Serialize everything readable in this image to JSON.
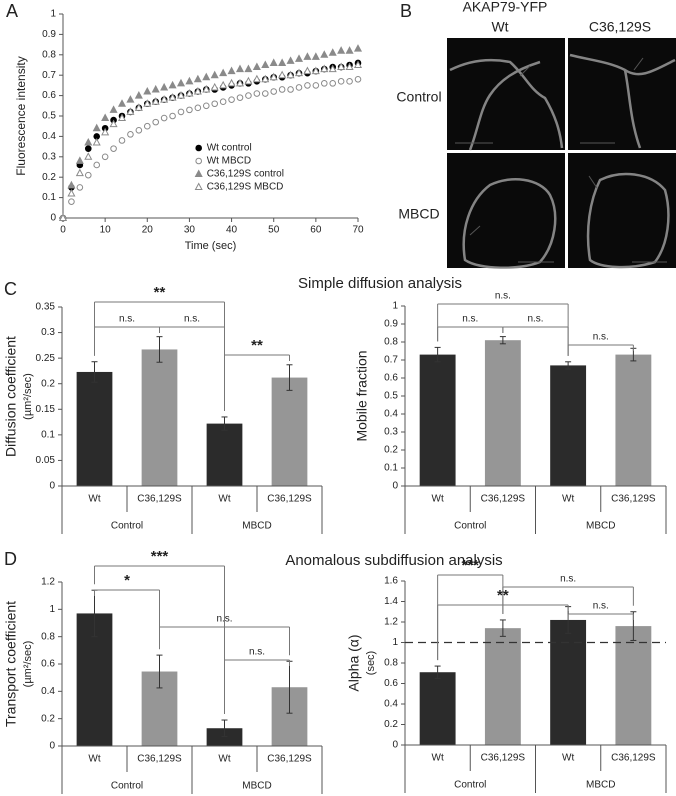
{
  "panel_labels": [
    "A",
    "B",
    "C",
    "D"
  ],
  "section_titles": [
    "Simple diffusion analysis",
    "Anomalous subdiffusion analysis"
  ],
  "micrograph": {
    "title": "AKAP79-YFP",
    "columns": [
      "Wt",
      "C36,129S"
    ],
    "rows": [
      "Control",
      "MBCD"
    ]
  },
  "chart_data": [
    {
      "type": "scatter",
      "x_label": "Time (sec)",
      "y_label": "Fluorescence intensity",
      "x": [
        0,
        2,
        4,
        6,
        8,
        10,
        12,
        14,
        16,
        18,
        20,
        22,
        24,
        26,
        28,
        30,
        32,
        34,
        36,
        38,
        40,
        42,
        44,
        46,
        48,
        50,
        52,
        54,
        56,
        58,
        60,
        62,
        64,
        66,
        68,
        70
      ],
      "xlim": [
        0,
        70
      ],
      "xticks": [
        0,
        10,
        20,
        30,
        40,
        50,
        60,
        70
      ],
      "ylim": [
        0,
        1
      ],
      "yticks": [
        0,
        0.1,
        0.2,
        0.3,
        0.4,
        0.5,
        0.6,
        0.7,
        0.8,
        0.9,
        1
      ],
      "legend": "lower right",
      "series": [
        {
          "name": "Wt control",
          "color": "#000000",
          "marker": "circle",
          "filled": true,
          "values": [
            0,
            0.15,
            0.26,
            0.34,
            0.4,
            0.44,
            0.48,
            0.5,
            0.52,
            0.54,
            0.56,
            0.57,
            0.58,
            0.59,
            0.6,
            0.61,
            0.62,
            0.63,
            0.63,
            0.64,
            0.65,
            0.66,
            0.66,
            0.67,
            0.68,
            0.69,
            0.69,
            0.7,
            0.71,
            0.71,
            0.72,
            0.73,
            0.74,
            0.74,
            0.75,
            0.76
          ]
        },
        {
          "name": "Wt MBCD",
          "color": "#8a8a8a",
          "marker": "circle",
          "filled": false,
          "values": [
            0,
            0.08,
            0.15,
            0.21,
            0.26,
            0.3,
            0.34,
            0.38,
            0.41,
            0.43,
            0.45,
            0.47,
            0.49,
            0.5,
            0.52,
            0.53,
            0.54,
            0.55,
            0.56,
            0.57,
            0.58,
            0.59,
            0.6,
            0.61,
            0.61,
            0.62,
            0.63,
            0.63,
            0.64,
            0.65,
            0.65,
            0.66,
            0.66,
            0.67,
            0.67,
            0.68
          ]
        },
        {
          "name": "C36,129S control",
          "color": "#8a8a8a",
          "marker": "triangle",
          "filled": true,
          "values": [
            0,
            0.16,
            0.28,
            0.37,
            0.44,
            0.49,
            0.53,
            0.56,
            0.58,
            0.6,
            0.62,
            0.63,
            0.64,
            0.65,
            0.66,
            0.67,
            0.68,
            0.69,
            0.7,
            0.71,
            0.72,
            0.73,
            0.73,
            0.74,
            0.75,
            0.76,
            0.76,
            0.77,
            0.78,
            0.79,
            0.79,
            0.8,
            0.81,
            0.82,
            0.82,
            0.83
          ]
        },
        {
          "name": "C36,129S MBCD",
          "color": "#8a8a8a",
          "marker": "triangle",
          "filled": false,
          "values": [
            0,
            0.12,
            0.22,
            0.3,
            0.37,
            0.42,
            0.46,
            0.49,
            0.52,
            0.54,
            0.56,
            0.57,
            0.58,
            0.59,
            0.6,
            0.61,
            0.62,
            0.63,
            0.64,
            0.65,
            0.66,
            0.66,
            0.67,
            0.68,
            0.68,
            0.69,
            0.7,
            0.7,
            0.71,
            0.72,
            0.72,
            0.73,
            0.73,
            0.74,
            0.74,
            0.75
          ]
        }
      ]
    },
    {
      "type": "bar",
      "y_label": "Diffusion coefficient",
      "y_unit": "(µm²/sec)",
      "categories": [
        "Wt",
        "C36,129S",
        "Wt",
        "C36,129S"
      ],
      "groups": [
        "Control",
        "MBCD"
      ],
      "values": [
        0.223,
        0.267,
        0.122,
        0.212
      ],
      "errors": [
        0.02,
        0.025,
        0.013,
        0.025
      ],
      "colors": [
        "#2b2b2b",
        "#969696",
        "#2b2b2b",
        "#969696"
      ],
      "ylim": [
        0,
        0.35
      ],
      "yticks": [
        0,
        0.05,
        0.1,
        0.15,
        0.2,
        0.25,
        0.3,
        0.35
      ],
      "comparisons": [
        {
          "label": "**",
          "pair": [
            0,
            2
          ]
        },
        {
          "label": "n.s.",
          "pair": [
            0,
            1
          ]
        },
        {
          "label": "n.s.",
          "pair": [
            1,
            2
          ]
        },
        {
          "label": "**",
          "pair": [
            2,
            3
          ]
        }
      ]
    },
    {
      "type": "bar",
      "y_label": "Mobile fraction",
      "categories": [
        "Wt",
        "C36,129S",
        "Wt",
        "C36,129S"
      ],
      "groups": [
        "Control",
        "MBCD"
      ],
      "values": [
        0.73,
        0.81,
        0.67,
        0.73
      ],
      "errors": [
        0.04,
        0.02,
        0.02,
        0.035
      ],
      "colors": [
        "#2b2b2b",
        "#969696",
        "#2b2b2b",
        "#969696"
      ],
      "ylim": [
        0,
        1
      ],
      "yticks": [
        0,
        0.1,
        0.2,
        0.3,
        0.4,
        0.5,
        0.6,
        0.7,
        0.8,
        0.9,
        1
      ],
      "comparisons": [
        {
          "label": "n.s.",
          "pair": [
            0,
            2
          ]
        },
        {
          "label": "n.s.",
          "pair": [
            0,
            1
          ]
        },
        {
          "label": "n.s.",
          "pair": [
            1,
            2
          ]
        },
        {
          "label": "n.s.",
          "pair": [
            2,
            3
          ]
        }
      ]
    },
    {
      "type": "bar",
      "y_label": "Transport  coefficient",
      "y_unit": "(µm²/sec)",
      "categories": [
        "Wt",
        "C36,129S",
        "Wt",
        "C36,129S"
      ],
      "groups": [
        "Control",
        "MBCD"
      ],
      "values": [
        0.97,
        0.545,
        0.13,
        0.43
      ],
      "errors": [
        0.17,
        0.12,
        0.06,
        0.19
      ],
      "colors": [
        "#2b2b2b",
        "#969696",
        "#2b2b2b",
        "#969696"
      ],
      "ylim": [
        0,
        1.2
      ],
      "yticks": [
        0,
        0.2,
        0.4,
        0.6,
        0.8,
        1,
        1.2
      ],
      "comparisons": [
        {
          "label": "***",
          "pair": [
            0,
            2
          ]
        },
        {
          "label": "*",
          "pair": [
            0,
            1
          ]
        },
        {
          "label": "n.s.",
          "pair": [
            1,
            3
          ]
        },
        {
          "label": "n.s.",
          "pair": [
            2,
            3
          ]
        }
      ]
    },
    {
      "type": "bar",
      "y_label": "Alpha (α)",
      "y_unit": "(sec)",
      "categories": [
        "Wt",
        "C36,129S",
        "Wt",
        "C36,129S"
      ],
      "groups": [
        "Control",
        "MBCD"
      ],
      "values": [
        0.71,
        1.14,
        1.22,
        1.16
      ],
      "errors": [
        0.06,
        0.08,
        0.13,
        0.14
      ],
      "colors": [
        "#2b2b2b",
        "#969696",
        "#2b2b2b",
        "#969696"
      ],
      "ylim": [
        0,
        1.6
      ],
      "yticks": [
        0,
        0.2,
        0.4,
        0.6,
        0.8,
        1,
        1.2,
        1.4,
        1.6
      ],
      "reference_line": 1,
      "comparisons": [
        {
          "label": "***",
          "pair": [
            0,
            1
          ]
        },
        {
          "label": "**",
          "pair": [
            0,
            2
          ]
        },
        {
          "label": "n.s.",
          "pair": [
            1,
            3
          ]
        },
        {
          "label": "n.s.",
          "pair": [
            2,
            3
          ]
        }
      ]
    }
  ]
}
